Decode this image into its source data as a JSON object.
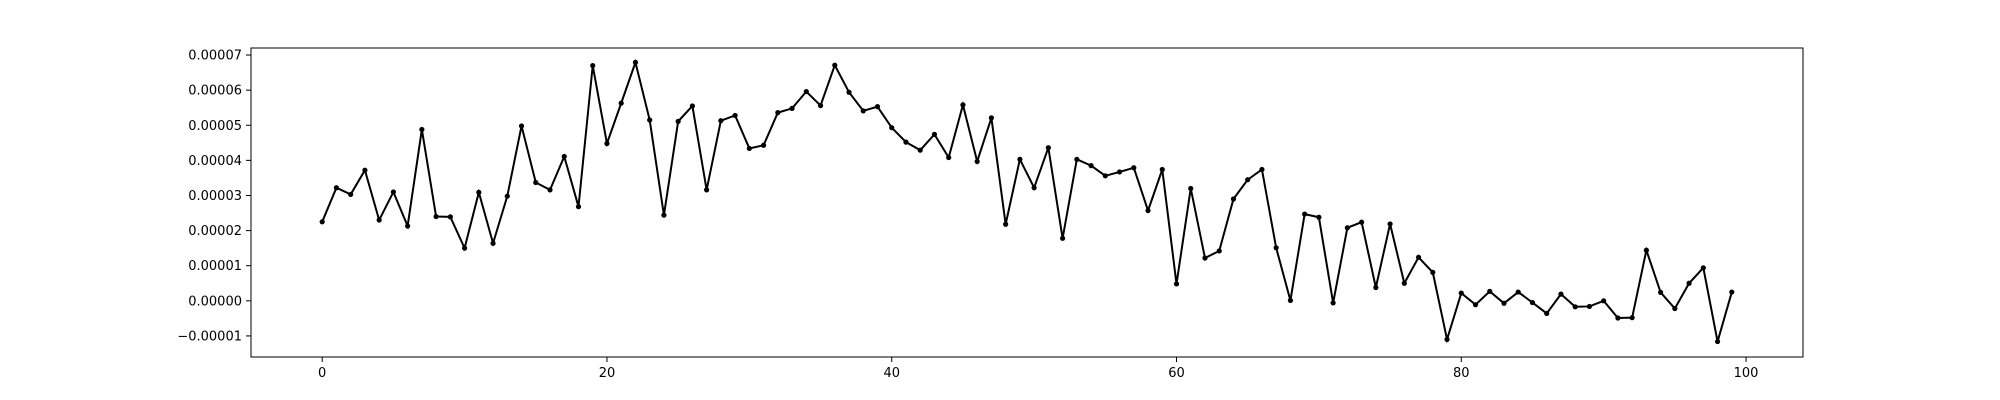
{
  "chart_data": {
    "type": "line",
    "title": "",
    "xlabel": "",
    "ylabel": "",
    "xlim": [
      -5,
      104
    ],
    "ylim": [
      -1.6e-05,
      7.2e-05
    ],
    "grid": false,
    "legend": "none",
    "marker": "dot",
    "line_color": "#000000",
    "x_ticks": [
      {
        "value": 0,
        "label": "0"
      },
      {
        "value": 20,
        "label": "20"
      },
      {
        "value": 40,
        "label": "40"
      },
      {
        "value": 60,
        "label": "60"
      },
      {
        "value": 80,
        "label": "80"
      },
      {
        "value": 100,
        "label": "100"
      }
    ],
    "y_ticks": [
      {
        "value": -1e-05,
        "label": "−0.00001"
      },
      {
        "value": 0,
        "label": "0.00000"
      },
      {
        "value": 1e-05,
        "label": "0.00001"
      },
      {
        "value": 2e-05,
        "label": "0.00002"
      },
      {
        "value": 3e-05,
        "label": "0.00003"
      },
      {
        "value": 4e-05,
        "label": "0.00004"
      },
      {
        "value": 5e-05,
        "label": "0.00005"
      },
      {
        "value": 6e-05,
        "label": "0.00006"
      },
      {
        "value": 7e-05,
        "label": "0.00007"
      }
    ],
    "series": [
      {
        "values": [
          2.25e-05,
          3.22e-05,
          3.03e-05,
          3.72e-05,
          2.3e-05,
          3.1e-05,
          2.13e-05,
          4.88e-05,
          2.4e-05,
          2.39e-05,
          1.5e-05,
          3.09e-05,
          1.64e-05,
          2.98e-05,
          4.98e-05,
          3.37e-05,
          3.16e-05,
          4.11e-05,
          2.68e-05,
          6.7e-05,
          4.48e-05,
          5.63e-05,
          6.79e-05,
          5.15e-05,
          2.44e-05,
          5.11e-05,
          5.55e-05,
          3.16e-05,
          5.13e-05,
          5.28e-05,
          4.34e-05,
          4.43e-05,
          5.36e-05,
          5.48e-05,
          5.96e-05,
          5.56e-05,
          6.71e-05,
          5.94e-05,
          5.41e-05,
          5.53e-05,
          4.93e-05,
          4.52e-05,
          4.29e-05,
          4.74e-05,
          4.08e-05,
          5.58e-05,
          3.97e-05,
          5.21e-05,
          2.18e-05,
          4.03e-05,
          3.22e-05,
          4.36e-05,
          1.78e-05,
          4.03e-05,
          3.85e-05,
          3.56e-05,
          3.67e-05,
          3.79e-05,
          2.57e-05,
          3.74e-05,
          4.8e-06,
          3.2e-05,
          1.22e-05,
          1.42e-05,
          2.9e-05,
          3.45e-05,
          3.74e-05,
          1.51e-05,
          1e-07,
          2.47e-05,
          2.38e-05,
          -6e-07,
          2.08e-05,
          2.24e-05,
          3.8e-06,
          2.19e-05,
          5e-06,
          1.24e-05,
          8.1e-06,
          -1.1e-05,
          2.2e-06,
          -1.1e-06,
          2.7e-06,
          -7e-07,
          2.5e-06,
          -5e-07,
          -3.6e-06,
          1.9e-06,
          -1.7e-06,
          -1.6e-06,
          0.0,
          -4.9e-06,
          -4.8e-06,
          1.44e-05,
          2.4e-06,
          -2.2e-06,
          5e-06,
          9.4e-06,
          -1.16e-05,
          2.5e-06
        ]
      }
    ]
  }
}
